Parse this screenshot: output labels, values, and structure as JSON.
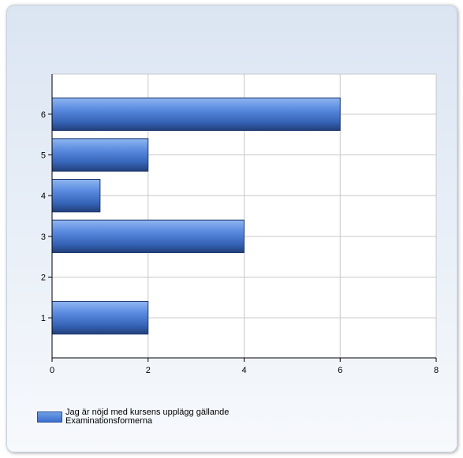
{
  "chart_data": {
    "type": "bar",
    "orientation": "horizontal",
    "categories": [
      "1",
      "2",
      "3",
      "4",
      "5",
      "6"
    ],
    "series": [
      {
        "name": "Jag är nöjd med kursens upplägg gällande Examinationsformerna",
        "values": [
          2,
          0,
          4,
          1,
          2,
          6
        ]
      }
    ],
    "xlim": [
      0,
      8
    ],
    "xticks": [
      "0",
      "2",
      "4",
      "6",
      "8"
    ],
    "grid": true,
    "legend_position": "bottom-left",
    "colors": {
      "bar": "#4a7fd8",
      "bar_dark": "#223f78",
      "bar_light": "#8fb6f0",
      "grid": "#c8c8c8"
    }
  },
  "legend": {
    "label": "Jag är nöjd med kursens upplägg gällande Examinationsformerna"
  }
}
